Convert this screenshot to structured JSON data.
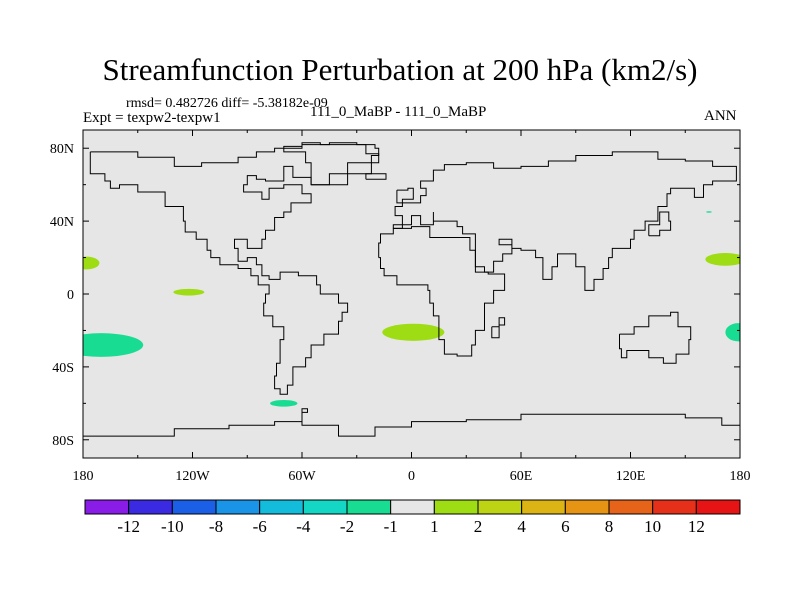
{
  "chart_data": {
    "type": "heatmap",
    "title": "Streamfunction Perturbation at 200 hPa (km2/s)",
    "subtitle_left": "rmsd= 0.482726 diff= -5.38182e-09",
    "expt_label": "Expt = texpw2-texpw1",
    "period_label": "111_0_MaBP - 111_0_MaBP",
    "season_label": "ANN",
    "xlabel": "",
    "ylabel": "",
    "xlim": [
      -180,
      180
    ],
    "ylim": [
      -90,
      90
    ],
    "x_ticks": [
      {
        "value": -180,
        "label": "180"
      },
      {
        "value": -120,
        "label": "120W"
      },
      {
        "value": -60,
        "label": "60W"
      },
      {
        "value": 0,
        "label": "0"
      },
      {
        "value": 60,
        "label": "60E"
      },
      {
        "value": 120,
        "label": "120E"
      },
      {
        "value": 180,
        "label": "180"
      }
    ],
    "y_ticks": [
      {
        "value": 80,
        "label": "80N"
      },
      {
        "value": 40,
        "label": "40N"
      },
      {
        "value": 0,
        "label": "0"
      },
      {
        "value": -40,
        "label": "40S"
      },
      {
        "value": -80,
        "label": "80S"
      }
    ],
    "colorbar": {
      "colors": [
        "#8a1ce8",
        "#3a2ae2",
        "#1a5fe6",
        "#1a94e6",
        "#14bcdc",
        "#14d6c4",
        "#18dc92",
        "#e6e6e6",
        "#9edc14",
        "#bcd414",
        "#dcb414",
        "#e69414",
        "#e6641a",
        "#e6301a",
        "#e61414"
      ],
      "labels": [
        "-12",
        "-10",
        "-8",
        "-6",
        "-4",
        "-2",
        "-1",
        "1",
        "2",
        "4",
        "6",
        "8",
        "10",
        "12"
      ]
    },
    "background_color": "#e6e6e6",
    "anomaly_regions": [
      {
        "lon": -178,
        "lat": 17,
        "rlon": 7,
        "rlat": 3.5,
        "color": "#9edc14",
        "level": "1 to 2"
      },
      {
        "lon": -122,
        "lat": 1,
        "rlon": 8.5,
        "rlat": 1.8,
        "color": "#9edc14",
        "level": "1 to 2"
      },
      {
        "lon": -170,
        "lat": -28,
        "rlon": 23,
        "rlat": 6.5,
        "color": "#18dc92",
        "level": "-2 to -1"
      },
      {
        "lon": -70,
        "lat": -60,
        "rlon": 7.5,
        "rlat": 1.8,
        "color": "#18dc92",
        "level": "-2 to -1"
      },
      {
        "lon": 1,
        "lat": -21,
        "rlon": 17,
        "rlat": 4.7,
        "color": "#9edc14",
        "level": "1 to 2"
      },
      {
        "lon": 172,
        "lat": 19,
        "rlon": 11,
        "rlat": 3.5,
        "color": "#9edc14",
        "level": "1 to 2"
      },
      {
        "lon": 179,
        "lat": -21,
        "rlon": 7,
        "rlat": 5,
        "color": "#18dc92",
        "level": "-2 to -1"
      },
      {
        "lon": 163,
        "lat": 45,
        "rlon": 1.5,
        "rlat": 0.4,
        "color": "#18dc92",
        "level": "-2 to -1"
      }
    ],
    "coastlines": [
      [
        [
          -176,
          78
        ],
        [
          -150,
          78
        ],
        [
          -150,
          75
        ],
        [
          -135,
          75
        ],
        [
          -130,
          70
        ],
        [
          -120,
          70
        ],
        [
          -115,
          72
        ],
        [
          -100,
          72
        ],
        [
          -95,
          75
        ],
        [
          -85,
          78
        ],
        [
          -75,
          80
        ],
        [
          -60,
          82
        ],
        [
          -45,
          83
        ],
        [
          -30,
          82
        ],
        [
          -20,
          80
        ],
        [
          -18,
          76
        ],
        [
          -22,
          72
        ],
        [
          -35,
          66
        ],
        [
          -45,
          60
        ],
        [
          -55,
          64
        ],
        [
          -65,
          70
        ],
        [
          -70,
          62
        ],
        [
          -80,
          63
        ],
        [
          -85,
          65
        ],
        [
          -90,
          60
        ],
        [
          -92,
          56
        ],
        [
          -82,
          52
        ],
        [
          -78,
          58
        ],
        [
          -70,
          60
        ],
        [
          -60,
          55
        ],
        [
          -55,
          50
        ],
        [
          -66,
          45
        ],
        [
          -70,
          42
        ],
        [
          -75,
          35
        ],
        [
          -80,
          30
        ],
        [
          -82,
          25
        ],
        [
          -90,
          30
        ],
        [
          -97,
          25
        ],
        [
          -95,
          18
        ],
        [
          -90,
          20
        ],
        [
          -85,
          16
        ],
        [
          -82,
          10
        ],
        [
          -78,
          8
        ],
        [
          -72,
          12
        ],
        [
          -62,
          10
        ],
        [
          -52,
          5
        ],
        [
          -50,
          0
        ],
        [
          -40,
          -5
        ],
        [
          -35,
          -10
        ],
        [
          -38,
          -15
        ],
        [
          -40,
          -22
        ],
        [
          -48,
          -28
        ],
        [
          -55,
          -35
        ],
        [
          -58,
          -40
        ],
        [
          -65,
          -42
        ],
        [
          -65,
          -50
        ],
        [
          -68,
          -55
        ],
        [
          -72,
          -52
        ],
        [
          -75,
          -45
        ],
        [
          -74,
          -38
        ],
        [
          -72,
          -25
        ],
        [
          -70,
          -18
        ],
        [
          -76,
          -12
        ],
        [
          -81,
          -5
        ],
        [
          -80,
          0
        ],
        [
          -78,
          5
        ],
        [
          -84,
          10
        ],
        [
          -88,
          14
        ],
        [
          -95,
          16
        ],
        [
          -105,
          20
        ],
        [
          -110,
          24
        ],
        [
          -112,
          30
        ],
        [
          -118,
          34
        ],
        [
          -124,
          40
        ],
        [
          -125,
          48
        ],
        [
          -135,
          56
        ],
        [
          -150,
          60
        ],
        [
          -160,
          58
        ],
        [
          -165,
          62
        ],
        [
          -168,
          66
        ],
        [
          -176,
          70
        ],
        [
          -176,
          78
        ]
      ],
      [
        [
          -10,
          36
        ],
        [
          -5,
          43
        ],
        [
          -9,
          48
        ],
        [
          -5,
          50
        ],
        [
          0,
          50
        ],
        [
          5,
          54
        ],
        [
          8,
          58
        ],
        [
          5,
          62
        ],
        [
          12,
          68
        ],
        [
          18,
          71
        ],
        [
          30,
          72
        ],
        [
          45,
          69
        ],
        [
          60,
          70
        ],
        [
          75,
          73
        ],
        [
          90,
          76
        ],
        [
          110,
          78
        ],
        [
          135,
          74
        ],
        [
          150,
          73
        ],
        [
          165,
          70
        ],
        [
          178,
          68
        ],
        [
          178,
          62
        ],
        [
          165,
          60
        ],
        [
          160,
          53
        ],
        [
          155,
          58
        ],
        [
          142,
          55
        ],
        [
          140,
          48
        ],
        [
          135,
          40
        ],
        [
          128,
          35
        ],
        [
          122,
          30
        ],
        [
          120,
          25
        ],
        [
          110,
          20
        ],
        [
          108,
          14
        ],
        [
          105,
          8
        ],
        [
          100,
          2
        ],
        [
          95,
          6
        ],
        [
          95,
          15
        ],
        [
          90,
          22
        ],
        [
          80,
          15
        ],
        [
          77,
          8
        ],
        [
          72,
          20
        ],
        [
          68,
          24
        ],
        [
          60,
          25
        ],
        [
          55,
          27
        ],
        [
          48,
          30
        ],
        [
          55,
          22
        ],
        [
          50,
          18
        ],
        [
          45,
          12
        ],
        [
          40,
          15
        ],
        [
          35,
          28
        ],
        [
          35,
          33
        ],
        [
          28,
          37
        ],
        [
          25,
          40
        ],
        [
          20,
          40
        ],
        [
          12,
          45
        ],
        [
          12,
          38
        ],
        [
          5,
          43
        ],
        [
          0,
          38
        ],
        [
          -10,
          36
        ]
      ],
      [
        [
          -18,
          20
        ],
        [
          -17,
          14
        ],
        [
          -15,
          10
        ],
        [
          -8,
          5
        ],
        [
          5,
          5
        ],
        [
          9,
          2
        ],
        [
          10,
          -5
        ],
        [
          12,
          -12
        ],
        [
          15,
          -25
        ],
        [
          18,
          -33
        ],
        [
          25,
          -34
        ],
        [
          33,
          -28
        ],
        [
          35,
          -20
        ],
        [
          40,
          -12
        ],
        [
          40,
          -5
        ],
        [
          45,
          2
        ],
        [
          51,
          11
        ],
        [
          42,
          12
        ],
        [
          35,
          24
        ],
        [
          32,
          31
        ],
        [
          20,
          31
        ],
        [
          10,
          37
        ],
        [
          0,
          36
        ],
        [
          -10,
          33
        ],
        [
          -17,
          28
        ],
        [
          -18,
          20
        ]
      ],
      [
        [
          44,
          -18
        ],
        [
          48,
          -13
        ],
        [
          51,
          -17
        ],
        [
          48,
          -24
        ],
        [
          44,
          -24
        ],
        [
          44,
          -18
        ]
      ],
      [
        [
          114,
          -22
        ],
        [
          122,
          -18
        ],
        [
          130,
          -12
        ],
        [
          137,
          -12
        ],
        [
          142,
          -10
        ],
        [
          146,
          -18
        ],
        [
          153,
          -25
        ],
        [
          152,
          -33
        ],
        [
          145,
          -38
        ],
        [
          138,
          -35
        ],
        [
          130,
          -31
        ],
        [
          118,
          -35
        ],
        [
          115,
          -30
        ],
        [
          114,
          -22
        ]
      ],
      [
        [
          -55,
          60
        ],
        [
          -45,
          60
        ],
        [
          -35,
          66
        ],
        [
          -22,
          72
        ],
        [
          -18,
          77
        ],
        [
          -25,
          82
        ],
        [
          -50,
          83
        ],
        [
          -60,
          81
        ],
        [
          -70,
          78
        ],
        [
          -58,
          72
        ],
        [
          -55,
          60
        ]
      ],
      [
        [
          -180,
          -78
        ],
        [
          -150,
          -78
        ],
        [
          -130,
          -74
        ],
        [
          -100,
          -72
        ],
        [
          -75,
          -70
        ],
        [
          -60,
          -63
        ],
        [
          -57,
          -65
        ],
        [
          -60,
          -72
        ],
        [
          -40,
          -78
        ],
        [
          -20,
          -73
        ],
        [
          0,
          -70
        ],
        [
          30,
          -69
        ],
        [
          60,
          -66
        ],
        [
          90,
          -66
        ],
        [
          120,
          -66
        ],
        [
          150,
          -68
        ],
        [
          170,
          -72
        ],
        [
          180,
          -76
        ]
      ],
      [
        [
          -8,
          57
        ],
        [
          -2,
          58
        ],
        [
          1,
          52
        ],
        [
          -5,
          50
        ],
        [
          -8,
          57
        ]
      ],
      [
        [
          130,
          32
        ],
        [
          136,
          35
        ],
        [
          142,
          40
        ],
        [
          141,
          45
        ],
        [
          136,
          38
        ],
        [
          130,
          32
        ]
      ],
      [
        [
          -25,
          63
        ],
        [
          -14,
          64
        ],
        [
          -14,
          66
        ],
        [
          -22,
          66
        ],
        [
          -25,
          63
        ]
      ]
    ]
  }
}
